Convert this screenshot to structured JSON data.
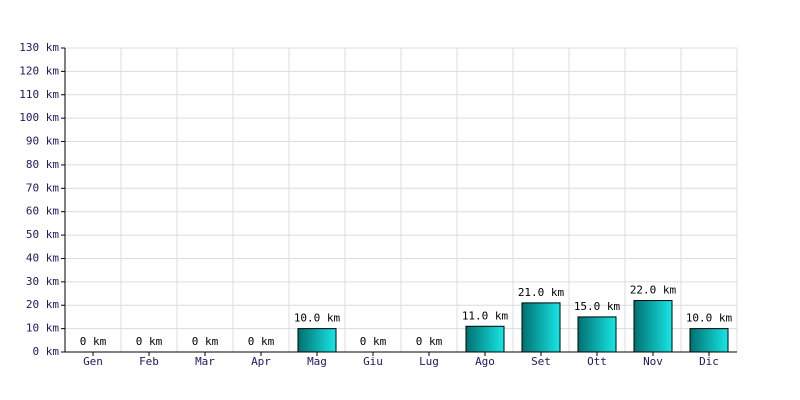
{
  "chart_data": {
    "type": "bar",
    "categories": [
      "Gen",
      "Feb",
      "Mar",
      "Apr",
      "Mag",
      "Giu",
      "Lug",
      "Ago",
      "Set",
      "Ott",
      "Nov",
      "Dic"
    ],
    "values": [
      0,
      0,
      0,
      0,
      10,
      0,
      0,
      11,
      21,
      15,
      22,
      10
    ],
    "value_labels": [
      "0 km",
      "0 km",
      "0 km",
      "0 km",
      "10.0 km",
      "0 km",
      "0 km",
      "11.0 km",
      "21.0 km",
      "15.0 km",
      "22.0 km",
      "10.0 km"
    ],
    "color": "#19e6e6",
    "ylim": [
      0,
      130
    ],
    "yticks": [
      {
        "value": 0,
        "label": "0 km"
      },
      {
        "value": 10,
        "label": "10 km"
      },
      {
        "value": 20,
        "label": "20 km"
      },
      {
        "value": 30,
        "label": "30 km"
      },
      {
        "value": 40,
        "label": "40 km"
      },
      {
        "value": 50,
        "label": "50 km"
      },
      {
        "value": 60,
        "label": "60 km"
      },
      {
        "value": 70,
        "label": "70 km"
      },
      {
        "value": 80,
        "label": "80 km"
      },
      {
        "value": 90,
        "label": "90 km"
      },
      {
        "value": 100,
        "label": "100 km"
      },
      {
        "value": 110,
        "label": "110 km"
      },
      {
        "value": 120,
        "label": "120 km"
      },
      {
        "value": 130,
        "label": "130 km"
      }
    ],
    "grid": true
  }
}
